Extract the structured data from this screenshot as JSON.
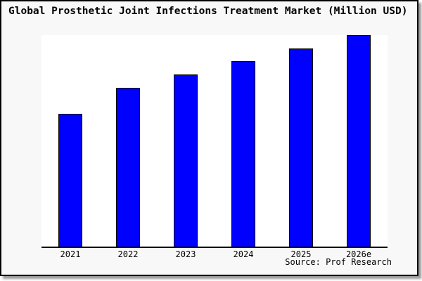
{
  "title": "Global Prosthetic Joint Infections Treatment Market (Million USD)",
  "source": "Source: Prof Research",
  "colors": {
    "bar_fill": "#0000ff",
    "bar_border": "#000000",
    "card_background": "#f8f8f8",
    "plot_background": "#ffffff",
    "axis": "#000000"
  },
  "chart_data": {
    "type": "bar",
    "title": "Global Prosthetic Joint Infections Treatment Market (Million USD)",
    "categories": [
      "2021",
      "2022",
      "2023",
      "2024",
      "2025",
      "2026e"
    ],
    "values": [
      62.8,
      75.1,
      81.4,
      87.7,
      93.7,
      100
    ],
    "value_unit": "percent of tallest bar (no y-axis values shown in chart)",
    "xlabel": "",
    "ylabel": "",
    "ylim": [
      0,
      100
    ],
    "grid": false,
    "legend": false,
    "bar_color": "#0000ff",
    "bar_border_color": "#000000",
    "source_note": "Source: Prof Research"
  }
}
